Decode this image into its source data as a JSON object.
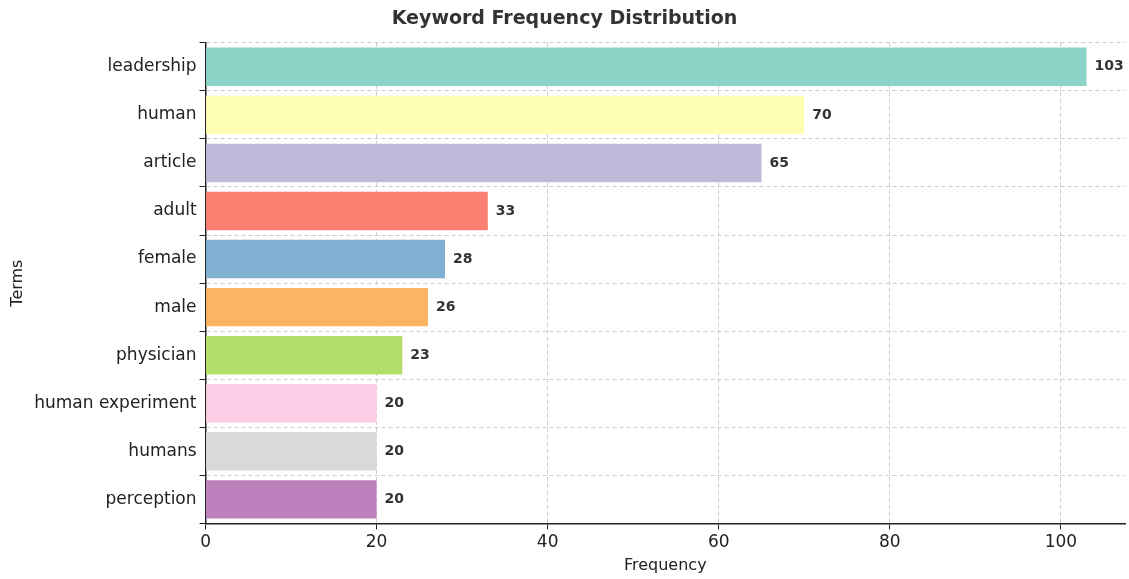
{
  "chart_data": {
    "type": "bar",
    "orientation": "horizontal",
    "title": "Keyword Frequency Distribution",
    "xlabel": "Frequency",
    "ylabel": "Terms",
    "categories": [
      "leadership",
      "human",
      "article",
      "adult",
      "female",
      "male",
      "physician",
      "human experiment",
      "humans",
      "perception"
    ],
    "values": [
      103,
      70,
      65,
      33,
      28,
      26,
      23,
      20,
      20,
      20
    ],
    "colors": [
      "#8dd3c7",
      "#ffffb3",
      "#bebada",
      "#fb8072",
      "#80b1d3",
      "#fdb462",
      "#b3de69",
      "#fccde5",
      "#d9d9d9",
      "#bc80bd"
    ],
    "xlim": [
      0,
      107.5
    ],
    "xticks": [
      0,
      20,
      40,
      60,
      80,
      100
    ],
    "grid": true,
    "data_labels": true,
    "legend": false
  }
}
